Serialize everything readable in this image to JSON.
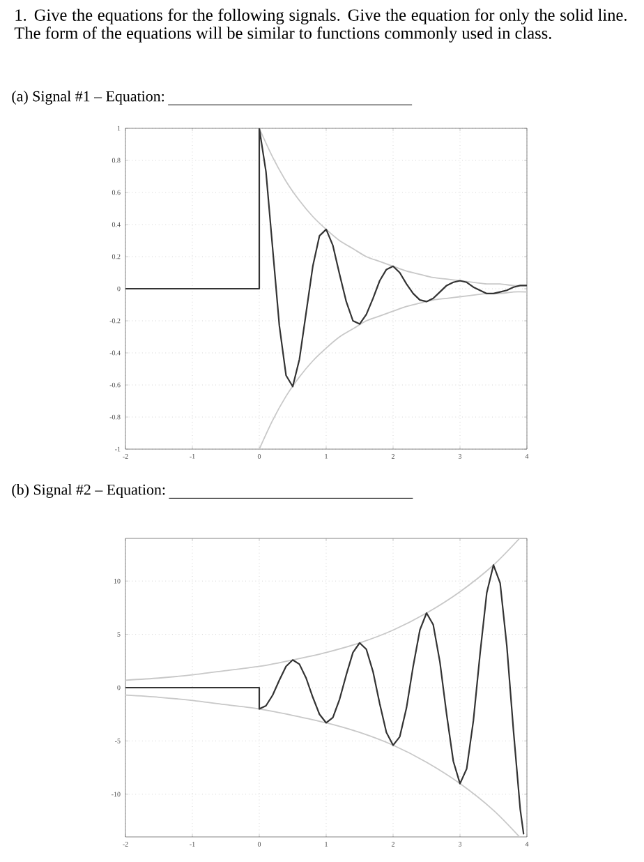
{
  "chart_data": [
    {
      "type": "line",
      "title": "(a) Signal #1 – Equation:",
      "annotations": [
        "1. Give the equations for the following signals. Give the equation for only the solid line. The form of the equations will be similar to functions commonly used in class."
      ],
      "xlim": [
        -2,
        4
      ],
      "ylim": [
        -1,
        1
      ],
      "xticks": [
        -2,
        -1,
        0,
        1,
        2,
        3,
        4
      ],
      "yticks": [
        -1,
        -0.8,
        -0.6,
        -0.4,
        -0.2,
        0,
        0.2,
        0.4,
        0.6,
        0.8,
        1
      ],
      "grid": true,
      "series": [
        {
          "color": "#c8c8c8",
          "x": [
            0,
            0.2,
            0.4,
            0.6,
            0.8,
            1,
            1.2,
            1.4,
            1.6,
            1.8,
            2,
            2.2,
            2.4,
            2.6,
            2.8,
            3,
            3.2,
            3.4,
            3.6,
            3.8,
            4
          ],
          "values": [
            1,
            0.82,
            0.67,
            0.55,
            0.45,
            0.37,
            0.3,
            0.25,
            0.2,
            0.17,
            0.14,
            0.11,
            0.09,
            0.07,
            0.06,
            0.05,
            0.04,
            0.03,
            0.03,
            0.02,
            0.02
          ]
        },
        {
          "color": "#c8c8c8",
          "x": [
            0,
            0.2,
            0.4,
            0.6,
            0.8,
            1,
            1.2,
            1.4,
            1.6,
            1.8,
            2,
            2.2,
            2.4,
            2.6,
            2.8,
            3,
            3.2,
            3.4,
            3.6,
            3.8,
            4
          ],
          "values": [
            -1,
            -0.82,
            -0.67,
            -0.55,
            -0.45,
            -0.37,
            -0.3,
            -0.25,
            -0.2,
            -0.17,
            -0.14,
            -0.11,
            -0.09,
            -0.07,
            -0.06,
            -0.05,
            -0.04,
            -0.03,
            -0.03,
            -0.02,
            -0.02
          ]
        },
        {
          "color": "#333333",
          "x": [
            -2,
            0,
            0,
            0.1,
            0.2,
            0.3,
            0.4,
            0.5,
            0.6,
            0.7,
            0.8,
            0.9,
            1,
            1.1,
            1.2,
            1.3,
            1.4,
            1.5,
            1.6,
            1.7,
            1.8,
            1.9,
            2,
            2.1,
            2.2,
            2.3,
            2.4,
            2.5,
            2.6,
            2.7,
            2.8,
            2.9,
            3,
            3.1,
            3.2,
            3.3,
            3.4,
            3.5,
            3.6,
            3.7,
            3.8,
            3.9,
            4
          ],
          "values": [
            0,
            0,
            1,
            0.73,
            0.25,
            -0.23,
            -0.54,
            -0.61,
            -0.44,
            -0.15,
            0.14,
            0.33,
            0.37,
            0.27,
            0.09,
            -0.08,
            -0.2,
            -0.22,
            -0.16,
            -0.06,
            0.05,
            0.12,
            0.14,
            0.1,
            0.03,
            -0.03,
            -0.07,
            -0.08,
            -0.06,
            -0.02,
            0.02,
            0.04,
            0.05,
            0.04,
            0.01,
            -0.01,
            -0.03,
            -0.03,
            -0.02,
            -0.01,
            0.01,
            0.02,
            0.02
          ]
        }
      ]
    },
    {
      "type": "line",
      "title": "(b) Signal #2 – Equation:",
      "xlim": [
        -2,
        4
      ],
      "ylim": [
        -14,
        14
      ],
      "xticks": [
        -2,
        -1,
        0,
        1,
        2,
        3,
        4
      ],
      "yticks": [
        -10,
        -5,
        0,
        5,
        10
      ],
      "grid": true,
      "series": [
        {
          "color": "#c8c8c8",
          "x": [
            -2,
            -1.5,
            -1,
            -0.5,
            0,
            0.5,
            1,
            1.5,
            2,
            2.5,
            3,
            3.5,
            3.89
          ],
          "values": [
            0.7,
            0.9,
            1.2,
            1.6,
            2,
            2.6,
            3.3,
            4.2,
            5.4,
            7,
            9,
            11.5,
            14
          ]
        },
        {
          "color": "#c8c8c8",
          "x": [
            -2,
            -1.5,
            -1,
            -0.5,
            0,
            0.5,
            1,
            1.5,
            2,
            2.5,
            3,
            3.5,
            3.89
          ],
          "values": [
            -0.7,
            -0.9,
            -1.2,
            -1.6,
            -2,
            -2.6,
            -3.3,
            -4.2,
            -5.4,
            -7,
            -9,
            -11.5,
            -14
          ]
        },
        {
          "color": "#333333",
          "x": [
            -2,
            0,
            0,
            0.1,
            0.2,
            0.3,
            0.4,
            0.5,
            0.6,
            0.7,
            0.8,
            0.9,
            1,
            1.1,
            1.2,
            1.3,
            1.4,
            1.5,
            1.6,
            1.7,
            1.8,
            1.9,
            2,
            2.1,
            2.2,
            2.3,
            2.4,
            2.5,
            2.6,
            2.7,
            2.8,
            2.9,
            3,
            3.1,
            3.2,
            3.3,
            3.4,
            3.5,
            3.6,
            3.7,
            3.8,
            3.9,
            3.95
          ],
          "values": [
            0,
            0,
            -2,
            -1.7,
            -0.7,
            0.7,
            2,
            2.6,
            2.2,
            0.9,
            -0.9,
            -2.5,
            -3.3,
            -2.8,
            -1.1,
            1.2,
            3.3,
            4.2,
            3.6,
            1.5,
            -1.5,
            -4.2,
            -5.4,
            -4.6,
            -1.9,
            2,
            5.4,
            7,
            5.9,
            2.4,
            -2.5,
            -6.9,
            -9,
            -7.6,
            -3.1,
            3.2,
            8.9,
            11.5,
            9.8,
            3.9,
            -4.1,
            -11.4,
            -13.7
          ]
        }
      ]
    }
  ]
}
